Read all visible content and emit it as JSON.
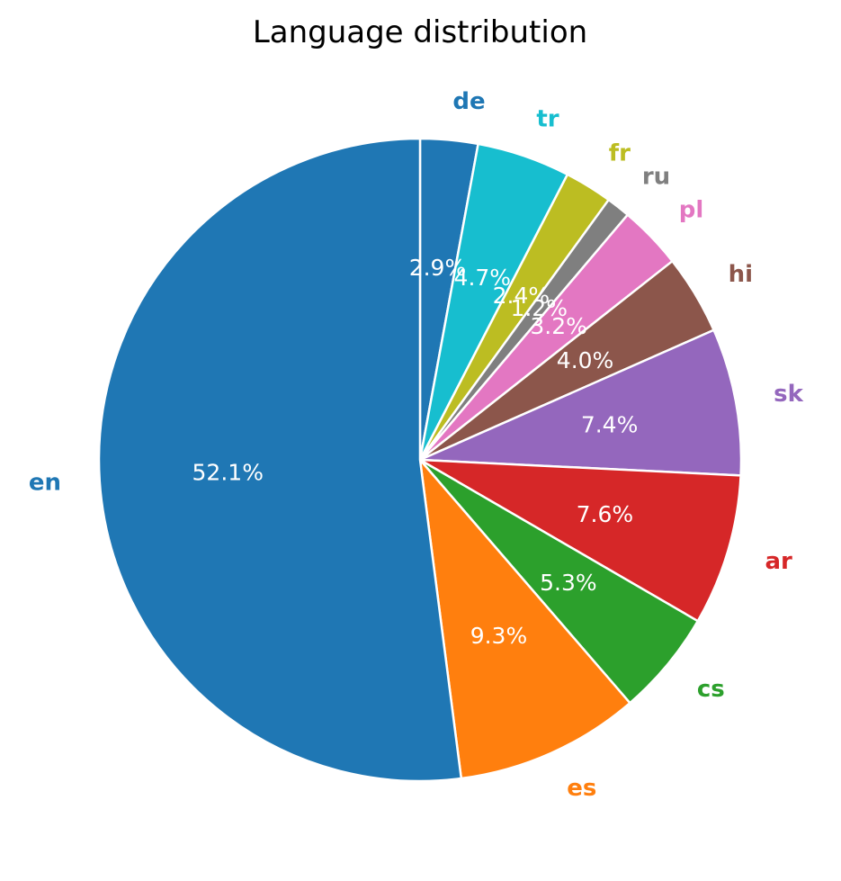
{
  "chart_data": {
    "type": "pie",
    "title": "Language distribution",
    "start_angle_deg": 90,
    "direction": "clockwise",
    "slices": [
      {
        "label": "de",
        "pct": 2.9,
        "pct_label": "2.9%",
        "color": "#1f77b4"
      },
      {
        "label": "tr",
        "pct": 4.7,
        "pct_label": "4.7%",
        "color": "#17becf"
      },
      {
        "label": "fr",
        "pct": 2.4,
        "pct_label": "2.4%",
        "color": "#bcbd22"
      },
      {
        "label": "ru",
        "pct": 1.2,
        "pct_label": "1.2%",
        "color": "#7f7f7f"
      },
      {
        "label": "pl",
        "pct": 3.2,
        "pct_label": "3.2%",
        "color": "#e377c2"
      },
      {
        "label": "hi",
        "pct": 4.0,
        "pct_label": "4.0%",
        "color": "#8c564b"
      },
      {
        "label": "sk",
        "pct": 7.4,
        "pct_label": "7.4%",
        "color": "#9467bd"
      },
      {
        "label": "ar",
        "pct": 7.6,
        "pct_label": "7.6%",
        "color": "#d62728"
      },
      {
        "label": "cs",
        "pct": 5.3,
        "pct_label": "5.3%",
        "color": "#2ca02c"
      },
      {
        "label": "es",
        "pct": 9.3,
        "pct_label": "9.3%",
        "color": "#ff7f0e"
      },
      {
        "label": "en",
        "pct": 52.1,
        "pct_label": "52.1%",
        "color": "#1f77b4"
      }
    ]
  }
}
